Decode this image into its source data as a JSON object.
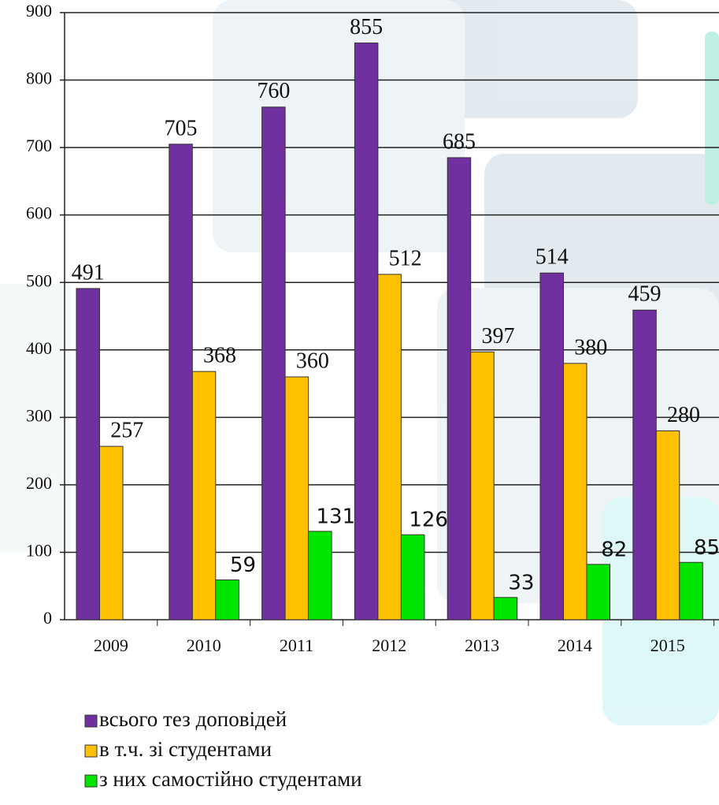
{
  "chart_data": {
    "type": "bar",
    "categories": [
      "2009",
      "2010",
      "2011",
      "2012",
      "2013",
      "2014",
      "2015"
    ],
    "series": [
      {
        "name": "всього тез доповідей",
        "color": "#7030a0",
        "values": [
          491,
          705,
          760,
          855,
          685,
          514,
          459
        ]
      },
      {
        "name": "в т.ч. зі студентами",
        "color": "#ffc000",
        "values": [
          257,
          368,
          360,
          512,
          397,
          380,
          280
        ]
      },
      {
        "name": "з них самостійно студентами",
        "color": "#00e600",
        "values": [
          null,
          59,
          131,
          126,
          33,
          82,
          85
        ]
      }
    ],
    "ylim": [
      0,
      900
    ],
    "yticks": [
      0,
      100,
      200,
      300,
      400,
      500,
      600,
      700,
      800,
      900
    ],
    "grid": true,
    "legend": "bottom"
  }
}
